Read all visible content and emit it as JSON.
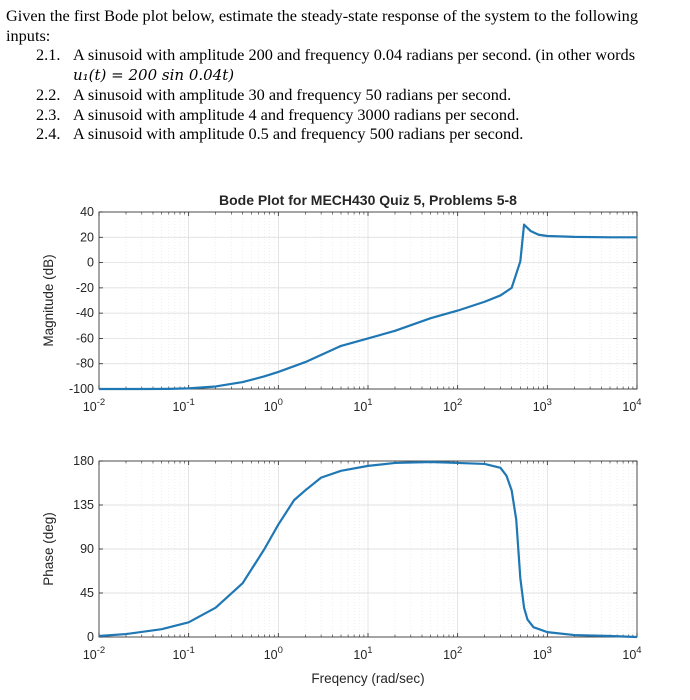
{
  "question": {
    "intro": "Given the first Bode plot below, estimate the steady-state response of the system to the following inputs:",
    "items": [
      {
        "num": "2.1.",
        "text": "A sinusoid with amplitude 200 and frequency 0.04 radians per second. (in other words"
      },
      {
        "num": "2.2.",
        "text": "A sinusoid with amplitude 30 and frequency 50 radians per second."
      },
      {
        "num": "2.3.",
        "text": "A sinusoid with amplitude 4 and frequency 3000 radians per second."
      },
      {
        "num": "2.4.",
        "text": "A sinusoid with amplitude 0.5 and frequency 500 radians per second."
      }
    ],
    "note": "u₁(t) = 200 sin 0.04t)"
  },
  "colors": {
    "line": "#1f77b4",
    "grid": "#e6e6e6",
    "axis": "#262626"
  },
  "chart_data": [
    {
      "type": "line",
      "title": "Bode Plot for MECH430 Quiz 5, Problems 5-8",
      "xlabel": "",
      "ylabel": "Magnitude (dB)",
      "xscale": "log",
      "xlim": [
        0.01,
        10000
      ],
      "ylim": [
        -100,
        40
      ],
      "xticks": [
        "10^-2",
        "10^-1",
        "10^0",
        "10^1",
        "10^2",
        "10^3",
        "10^4"
      ],
      "yticks": [
        "40",
        "20",
        "0",
        "-20",
        "-40",
        "-60",
        "-80",
        "-100"
      ],
      "ytick_values": [
        40,
        20,
        0,
        -20,
        -40,
        -60,
        -80,
        -100
      ],
      "grid": true,
      "series": [
        {
          "x": [
            0.01,
            0.03,
            0.06,
            0.1,
            0.2,
            0.4,
            0.7,
            1,
            2,
            5,
            10,
            20,
            50,
            100,
            200,
            300,
            400,
            500,
            550,
            650,
            800,
            1000,
            2000,
            5000,
            10000
          ],
          "y": [
            -100,
            -100,
            -99.9,
            -99.5,
            -98,
            -94.5,
            -90,
            -86.5,
            -78.7,
            -65.9,
            -60,
            -54,
            -44,
            -38,
            -31,
            -26,
            -20,
            1,
            30,
            25,
            22,
            21,
            20.3,
            20,
            20
          ]
        }
      ]
    },
    {
      "type": "line",
      "title": "",
      "xlabel": "Freqency (rad/sec)",
      "ylabel": "Phase (deg)",
      "xscale": "log",
      "xlim": [
        0.01,
        10000
      ],
      "ylim": [
        0,
        180
      ],
      "xticks": [
        "10^-2",
        "10^-1",
        "10^0",
        "10^1",
        "10^2",
        "10^3",
        "10^4"
      ],
      "yticks": [
        "180",
        "135",
        "90",
        "45",
        "0"
      ],
      "ytick_values": [
        180,
        135,
        90,
        45,
        0
      ],
      "grid": true,
      "series": [
        {
          "x": [
            0.01,
            0.02,
            0.05,
            0.1,
            0.2,
            0.4,
            0.7,
            1,
            1.5,
            2,
            3,
            5,
            10,
            20,
            50,
            100,
            200,
            300,
            350,
            400,
            450,
            500,
            550,
            600,
            700,
            1000,
            2000,
            5000,
            10000
          ],
          "y": [
            1,
            3,
            8,
            15,
            30,
            55,
            90,
            115,
            140,
            150,
            163,
            170,
            175,
            178,
            179,
            178,
            177,
            173,
            165,
            150,
            120,
            60,
            30,
            18,
            10,
            5,
            2,
            1,
            0
          ]
        }
      ]
    }
  ]
}
